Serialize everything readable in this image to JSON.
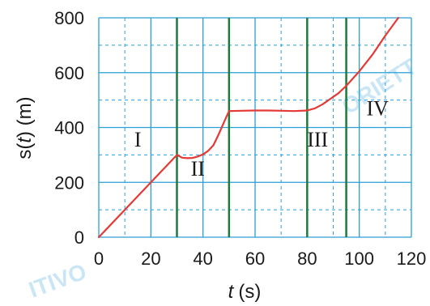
{
  "chart_data": {
    "type": "line",
    "xlabel_var": "t",
    "xlabel_unit": "(s)",
    "ylabel_prefix": "s(",
    "ylabel_var": "t",
    "ylabel_suffix": ") (m)",
    "xlim": [
      0,
      120
    ],
    "ylim": [
      0,
      800
    ],
    "x_ticks": [
      0,
      20,
      40,
      60,
      80,
      100,
      120
    ],
    "y_ticks": [
      0,
      200,
      400,
      600,
      800
    ],
    "x_ticks_labels": [
      "0",
      "20",
      "40",
      "60",
      "80",
      "100",
      "120"
    ],
    "y_ticks_labels": [
      "0",
      "200",
      "400",
      "600",
      "800"
    ],
    "minor_grid_x": [
      10,
      30,
      50,
      70,
      90,
      110
    ],
    "minor_grid_y": [
      100,
      300,
      500,
      700
    ],
    "grid": true,
    "grid_color": "#2a9fd8",
    "line_color": "#e53935",
    "divider_color": "#1e7a3c",
    "dividers_x": [
      30,
      50,
      80,
      95
    ],
    "series": [
      {
        "points": [
          [
            0,
            0
          ],
          [
            10,
            100
          ],
          [
            20,
            200
          ],
          [
            30,
            300
          ],
          [
            32,
            290
          ],
          [
            34,
            288
          ],
          [
            36,
            289
          ],
          [
            38,
            294
          ],
          [
            40,
            302
          ],
          [
            42,
            315
          ],
          [
            44,
            335
          ],
          [
            46,
            375
          ],
          [
            48,
            418
          ],
          [
            50,
            460
          ],
          [
            55,
            461
          ],
          [
            60,
            462
          ],
          [
            65,
            462
          ],
          [
            70,
            461
          ],
          [
            75,
            460
          ],
          [
            80,
            462
          ],
          [
            83,
            470
          ],
          [
            86,
            485
          ],
          [
            89,
            505
          ],
          [
            92,
            525
          ],
          [
            95,
            552
          ],
          [
            100,
            605
          ],
          [
            105,
            665
          ],
          [
            110,
            735
          ],
          [
            115,
            800
          ]
        ]
      }
    ],
    "regions": [
      {
        "label": "I",
        "x": 15,
        "y": 330
      },
      {
        "label": "II",
        "x": 38,
        "y": 225
      },
      {
        "label": "III",
        "x": 84,
        "y": 330
      },
      {
        "label": "IV",
        "x": 107,
        "y": 445
      }
    ]
  },
  "watermarks": [
    "ORIETT",
    "ITIVO"
  ],
  "colors": {
    "watermark": "#9fd3ef"
  }
}
